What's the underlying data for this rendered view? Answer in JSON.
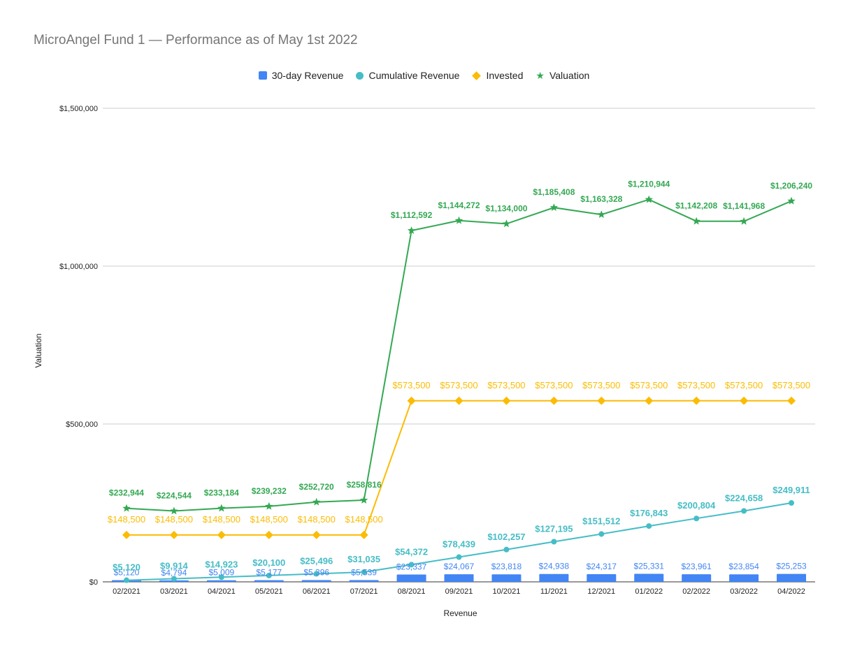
{
  "chart_data": {
    "type": "bar-line-combo",
    "title": "MicroAngel Fund 1 — Performance as of May 1st 2022",
    "xlabel": "Revenue",
    "ylabel": "Valuation",
    "ylim": [
      0,
      1500000
    ],
    "y_ticks": [
      0,
      500000,
      1000000,
      1500000
    ],
    "y_tick_labels": [
      "$0",
      "$500,000",
      "$1,000,000",
      "$1,500,000"
    ],
    "grid": true,
    "legend_position": "top",
    "categories": [
      "02/2021",
      "03/2021",
      "04/2021",
      "05/2021",
      "06/2021",
      "07/2021",
      "08/2021",
      "09/2021",
      "10/2021",
      "11/2021",
      "12/2021",
      "01/2022",
      "02/2022",
      "03/2022",
      "04/2022"
    ],
    "series": [
      {
        "name": "30-day Revenue",
        "kind": "bar",
        "color": "#4285f4",
        "values": [
          5120,
          4794,
          5009,
          5177,
          5396,
          5539,
          23337,
          24067,
          23818,
          24938,
          24317,
          25331,
          23961,
          23854,
          25253
        ],
        "labels": [
          "$5,120",
          "$4,794",
          "$5,009",
          "$5,177",
          "$5,396",
          "$5,539",
          "$23,337",
          "$24,067",
          "$23,818",
          "$24,938",
          "$24,317",
          "$25,331",
          "$23,961",
          "$23,854",
          "$25,253"
        ]
      },
      {
        "name": "Cumulative Revenue",
        "kind": "line",
        "marker": "circle",
        "color": "#46bdc6",
        "values": [
          5120,
          9914,
          14923,
          20100,
          25496,
          31035,
          54372,
          78439,
          102257,
          127195,
          151512,
          176843,
          200804,
          224658,
          249911
        ],
        "labels": [
          "$5,120",
          "$9,914",
          "$14,923",
          "$20,100",
          "$25,496",
          "$31,035",
          "$54,372",
          "$78,439",
          "$102,257",
          "$127,195",
          "$151,512",
          "$176,843",
          "$200,804",
          "$224,658",
          "$249,911"
        ]
      },
      {
        "name": "Invested",
        "kind": "line",
        "marker": "diamond",
        "color": "#fbbc04",
        "values": [
          148500,
          148500,
          148500,
          148500,
          148500,
          148500,
          573500,
          573500,
          573500,
          573500,
          573500,
          573500,
          573500,
          573500,
          573500
        ],
        "labels": [
          "$148,500",
          "$148,500",
          "$148,500",
          "$148,500",
          "$148,500",
          "$148,500",
          "$573,500",
          "$573,500",
          "$573,500",
          "$573,500",
          "$573,500",
          "$573,500",
          "$573,500",
          "$573,500",
          "$573,500"
        ]
      },
      {
        "name": "Valuation",
        "kind": "line",
        "marker": "star",
        "color": "#34a853",
        "values": [
          232944,
          224544,
          233184,
          239232,
          252720,
          258816,
          1112592,
          1144272,
          1134000,
          1185408,
          1163328,
          1210944,
          1142208,
          1141968,
          1206240
        ],
        "labels": [
          "$232,944",
          "$224,544",
          "$233,184",
          "$239,232",
          "$252,720",
          "$258,816",
          "$1,112,592",
          "$1,144,272",
          "$1,134,000",
          "$1,185,408",
          "$1,163,328",
          "$1,210,944",
          "$1,142,208",
          "$1,141,968",
          "$1,206,240"
        ]
      }
    ]
  }
}
